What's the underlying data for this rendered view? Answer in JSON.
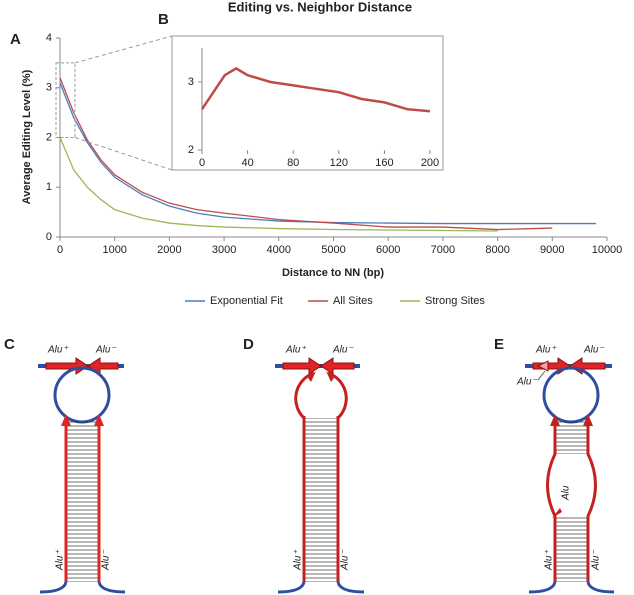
{
  "chart_data": [
    {
      "type": "line",
      "panel": "A",
      "title": "Editing vs. Neighbor Distance",
      "x_label": "Distance  to NN (bp)",
      "y_label": "Average Editing Level (%)",
      "x": [
        0,
        250,
        500,
        750,
        1000,
        1500,
        2000,
        2500,
        3000,
        4000,
        5000,
        6000,
        7000,
        8000,
        9000,
        9800
      ],
      "series": [
        {
          "name": "Exponential Fit",
          "color": "#4a7ebb",
          "values": [
            3.1,
            2.4,
            1.9,
            1.5,
            1.2,
            0.85,
            0.62,
            0.48,
            0.4,
            0.32,
            0.29,
            0.28,
            0.27,
            0.27,
            0.27,
            0.27
          ]
        },
        {
          "name": "All Sites",
          "color": "#be4b48",
          "values": [
            3.2,
            2.5,
            1.95,
            1.55,
            1.25,
            0.9,
            0.68,
            0.55,
            0.48,
            0.35,
            0.28,
            0.2,
            0.2,
            0.15,
            0.18,
            null
          ]
        },
        {
          "name": "Strong Sites",
          "color": "#98b954",
          "values": [
            2.0,
            1.35,
            1.0,
            0.75,
            0.55,
            0.38,
            0.28,
            0.23,
            0.2,
            0.17,
            0.15,
            0.14,
            0.13,
            0.12,
            null,
            null
          ]
        }
      ],
      "xlim": [
        0,
        10000
      ],
      "ylim": [
        0,
        4
      ],
      "xticks": [
        0,
        1000,
        2000,
        3000,
        4000,
        5000,
        6000,
        7000,
        8000,
        9000,
        10000
      ],
      "yticks": [
        0,
        1,
        2,
        3,
        4
      ],
      "legend": "bottom"
    },
    {
      "type": "line",
      "panel": "B",
      "x": [
        0,
        10,
        20,
        30,
        40,
        60,
        80,
        100,
        120,
        140,
        160,
        180,
        200
      ],
      "values": [
        2.6,
        2.85,
        3.1,
        3.2,
        3.1,
        3.0,
        2.95,
        2.9,
        2.85,
        2.75,
        2.7,
        2.6,
        2.57
      ],
      "color": "#be4b48",
      "xlim": [
        0,
        200
      ],
      "ylim": [
        2,
        3.5
      ],
      "xticks": [
        0,
        40,
        80,
        120,
        160,
        200
      ],
      "yticks": [
        2,
        3
      ]
    }
  ],
  "diagrams": [
    {
      "panel": "C",
      "top_left": "Alu⁺",
      "top_right": "Alu⁻",
      "stem_left": "Alu⁺",
      "stem_right": "Alu⁻"
    },
    {
      "panel": "D",
      "top_left": "Alu⁺",
      "top_right": "Alu⁻",
      "stem_left": "Alu⁺",
      "stem_right": "Alu⁻"
    },
    {
      "panel": "E",
      "top_left": "Alu⁺",
      "top_right": "Alu⁻",
      "small": "Alu⁻",
      "bulge": "Alu",
      "stem_left": "Alu⁺",
      "stem_right": "Alu⁻"
    }
  ]
}
